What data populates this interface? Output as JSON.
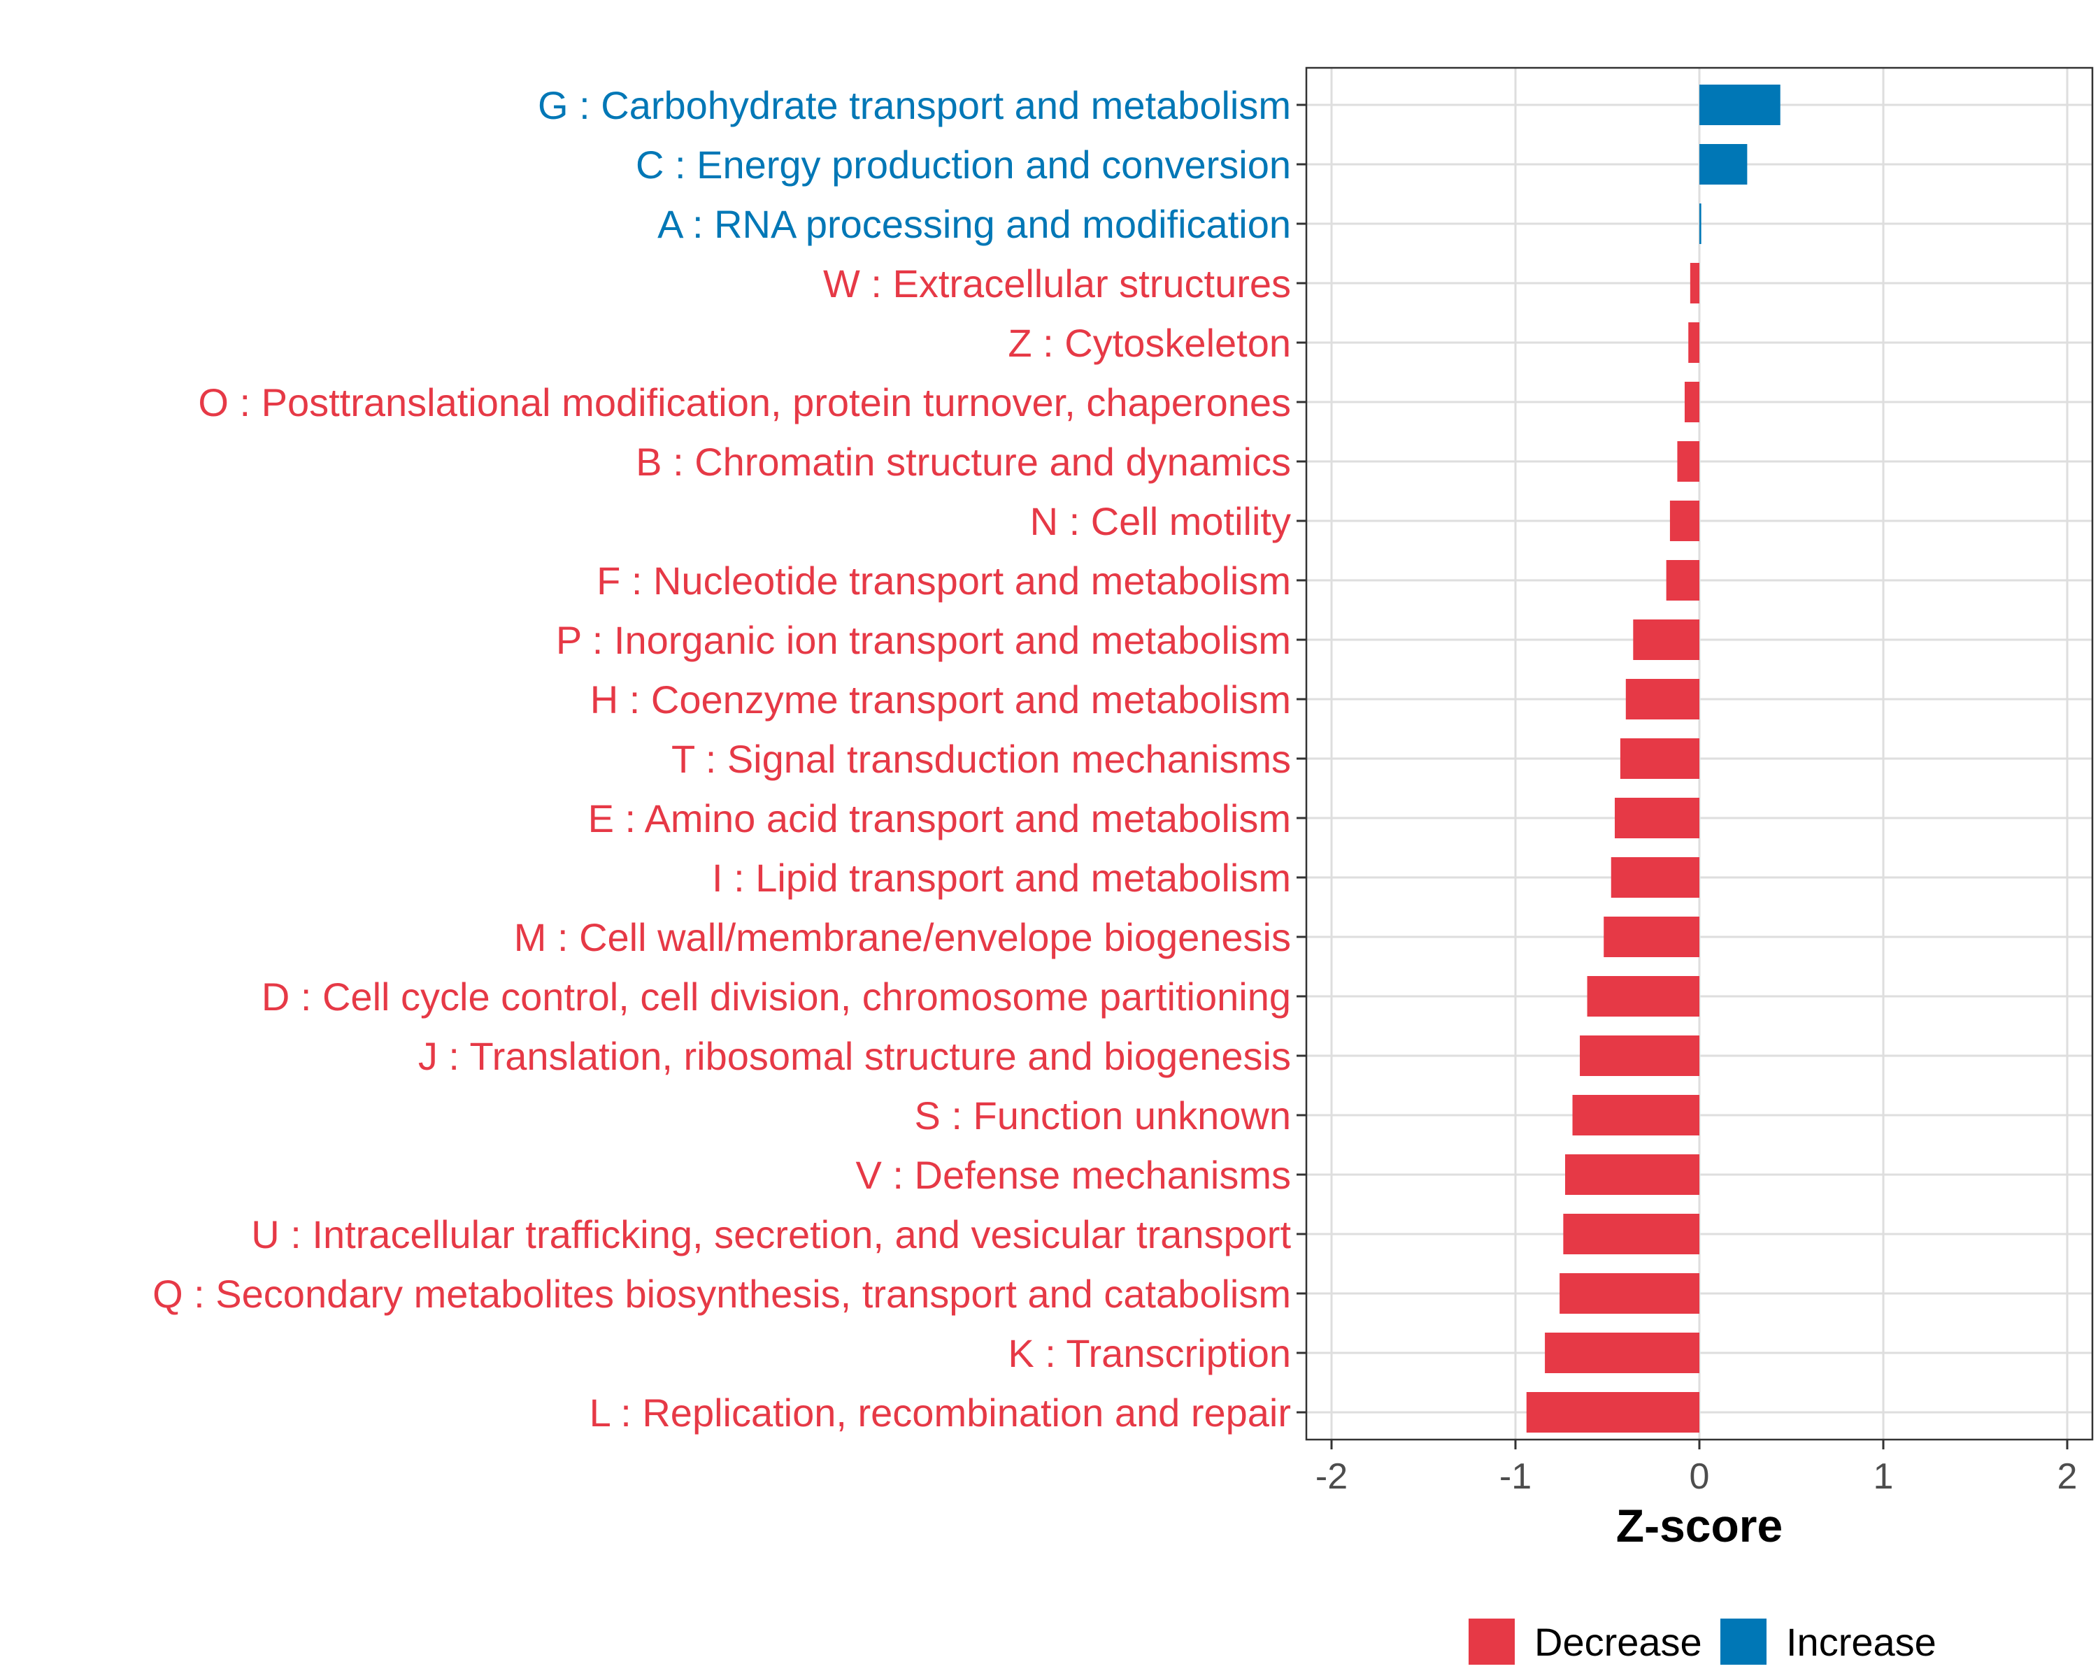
{
  "chart_data": {
    "type": "bar",
    "orientation": "horizontal",
    "title": "",
    "xlabel": "Z-score",
    "ylabel": "",
    "xlim": [
      -2.0,
      2.0
    ],
    "xticks": [
      -2,
      -1,
      0,
      1,
      2
    ],
    "xtick_labels": [
      "-2",
      "-1",
      "0",
      "1",
      "2"
    ],
    "grid": true,
    "legend_position": "bottom",
    "legend": [
      {
        "name": "Decrease",
        "color": "#E63946"
      },
      {
        "name": "Increase",
        "color": "#0077B6"
      }
    ],
    "categories": [
      "G : Carbohydrate transport and metabolism",
      "C : Energy production and conversion",
      "A : RNA processing and modification",
      "W : Extracellular structures",
      "Z : Cytoskeleton",
      "O : Posttranslational modification, protein turnover, chaperones",
      "B : Chromatin structure and dynamics",
      "N : Cell motility",
      "F : Nucleotide transport and metabolism",
      "P : Inorganic ion transport and metabolism",
      "H : Coenzyme transport and metabolism",
      "T : Signal transduction mechanisms",
      "E : Amino acid transport and metabolism",
      "I : Lipid transport and metabolism",
      "M : Cell wall/membrane/envelope biogenesis",
      "D : Cell cycle control, cell division, chromosome partitioning",
      "J : Translation, ribosomal structure and biogenesis",
      "S : Function unknown",
      "V : Defense mechanisms",
      "U : Intracellular trafficking, secretion, and vesicular transport",
      "Q : Secondary metabolites biosynthesis, transport and catabolism",
      "K : Transcription",
      "L : Replication, recombination and repair"
    ],
    "values": [
      0.44,
      0.26,
      0.01,
      -0.05,
      -0.06,
      -0.08,
      -0.12,
      -0.16,
      -0.18,
      -0.36,
      -0.4,
      -0.43,
      -0.46,
      -0.48,
      -0.52,
      -0.61,
      -0.65,
      -0.69,
      -0.73,
      -0.74,
      -0.76,
      -0.84,
      -0.94
    ],
    "direction": [
      "Increase",
      "Increase",
      "Increase",
      "Decrease",
      "Decrease",
      "Decrease",
      "Decrease",
      "Decrease",
      "Decrease",
      "Decrease",
      "Decrease",
      "Decrease",
      "Decrease",
      "Decrease",
      "Decrease",
      "Decrease",
      "Decrease",
      "Decrease",
      "Decrease",
      "Decrease",
      "Decrease",
      "Decrease",
      "Decrease"
    ]
  }
}
